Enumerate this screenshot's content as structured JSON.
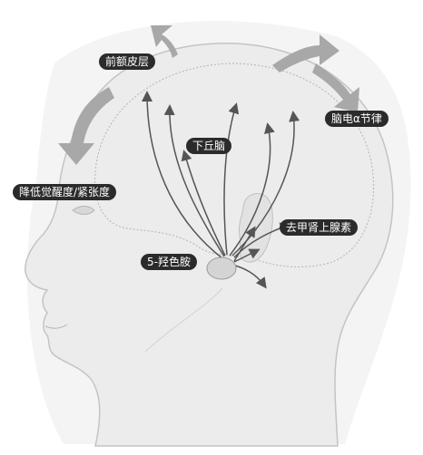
{
  "labels": {
    "prefrontal_cortex": "前额皮层",
    "eeg_rhythm": "脑电α节律",
    "hypothalamus": "下丘脑",
    "reduce_arousal": "降低觉醒度/紧张度",
    "norepinephrine": "去甲肾上腺素",
    "serotonin": "5-羟色胺"
  },
  "colors": {
    "label_bg": "#2b2b2b",
    "label_text": "#ffffff",
    "arrow": "#555555",
    "big_arrow": "#a8a8a8",
    "head_fill": "#ececec",
    "head_outline": "#c4c4c4"
  }
}
